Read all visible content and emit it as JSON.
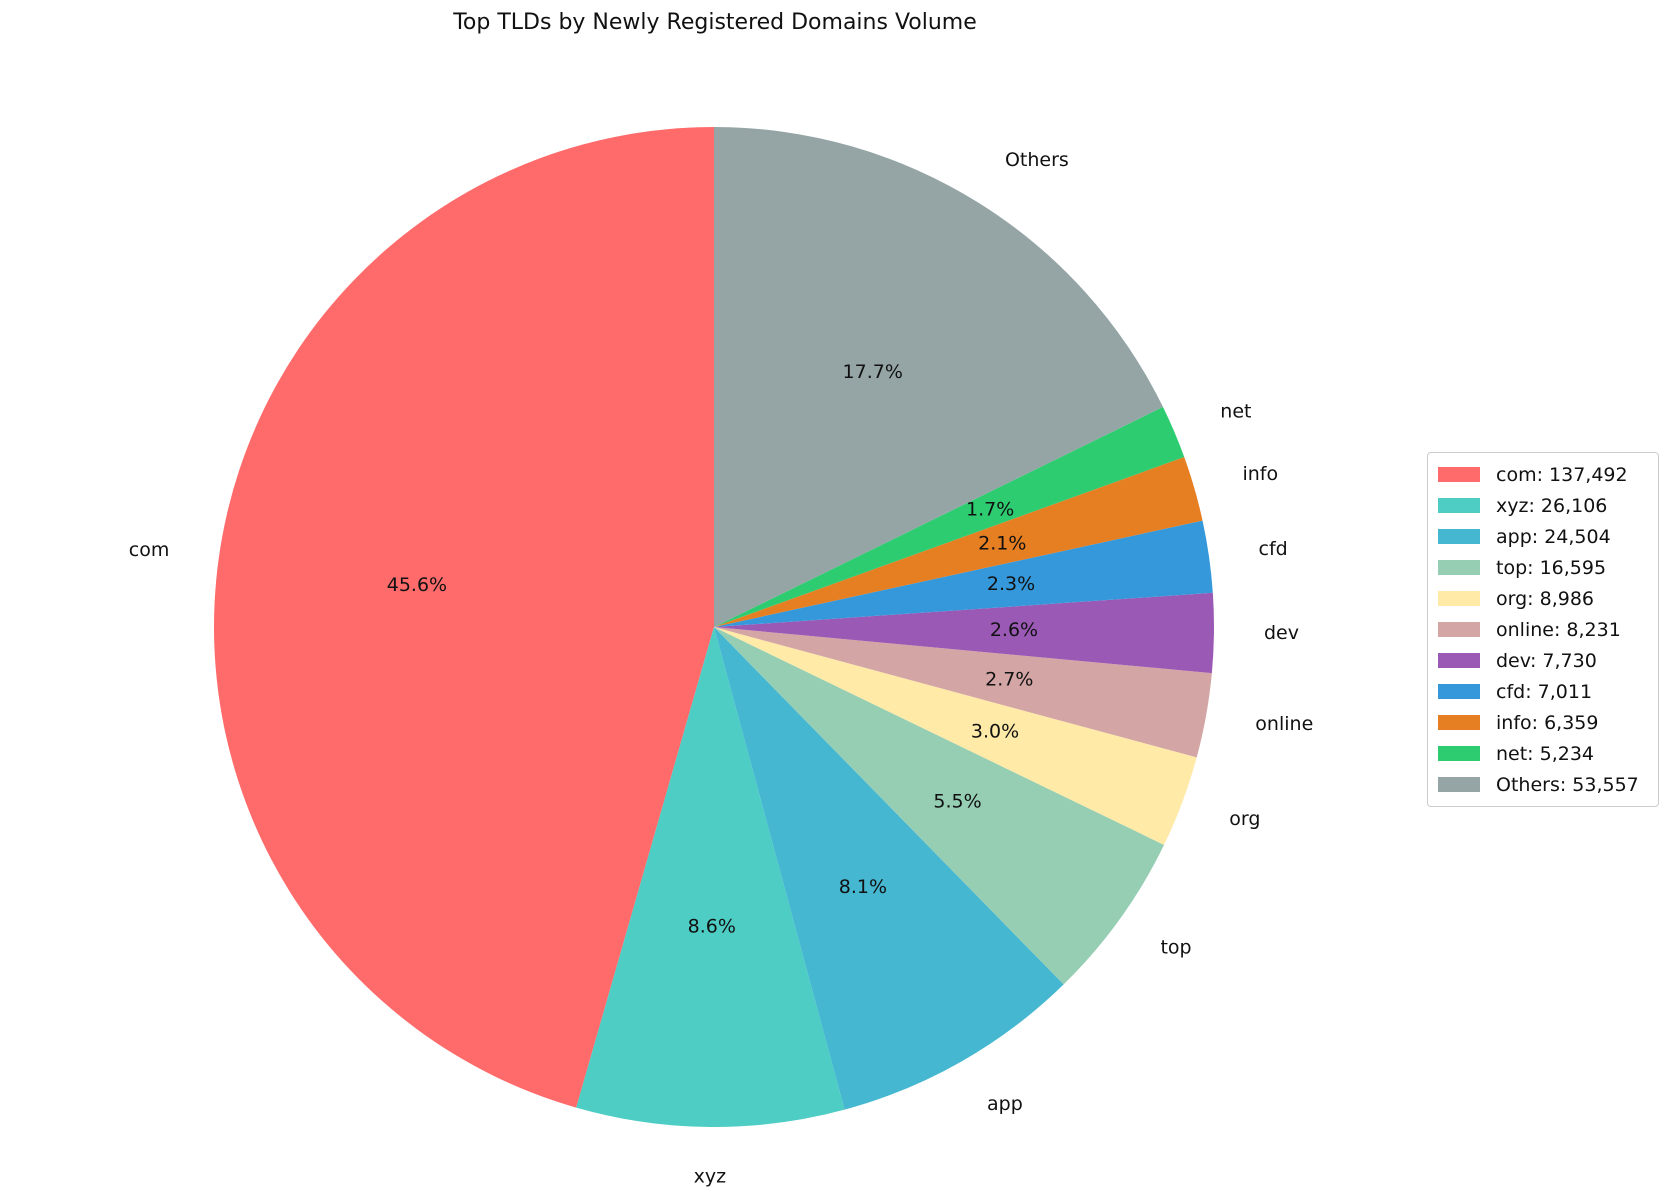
{
  "chart_data": {
    "type": "pie",
    "title": "Top TLDs by Newly Registered Domains Volume",
    "start_angle_deg": 90,
    "direction": "counterclockwise",
    "legend_position": "right",
    "slices": [
      {
        "label": "com",
        "value": 137492,
        "pct_label": "45.6%",
        "legend": "com: 137,492",
        "color": "#ff6b6b"
      },
      {
        "label": "xyz",
        "value": 26106,
        "pct_label": "8.6%",
        "legend": "xyz: 26,106",
        "color": "#4ecdc4"
      },
      {
        "label": "app",
        "value": 24504,
        "pct_label": "8.1%",
        "legend": "app: 24,504",
        "color": "#45b7d1"
      },
      {
        "label": "top",
        "value": 16595,
        "pct_label": "5.5%",
        "legend": "top: 16,595",
        "color": "#96ceb4"
      },
      {
        "label": "org",
        "value": 8986,
        "pct_label": "3.0%",
        "legend": "org: 8,986",
        "color": "#ffeaa7"
      },
      {
        "label": "online",
        "value": 8231,
        "pct_label": "2.7%",
        "legend": "online: 8,231",
        "color": "#d4a5a5"
      },
      {
        "label": "dev",
        "value": 7730,
        "pct_label": "2.6%",
        "legend": "dev: 7,730",
        "color": "#9b59b6"
      },
      {
        "label": "cfd",
        "value": 7011,
        "pct_label": "2.3%",
        "legend": "cfd: 7,011",
        "color": "#3498db"
      },
      {
        "label": "info",
        "value": 6359,
        "pct_label": "2.1%",
        "legend": "info: 6,359",
        "color": "#e67e22"
      },
      {
        "label": "net",
        "value": 5234,
        "pct_label": "1.7%",
        "legend": "net: 5,234",
        "color": "#2ecc71"
      },
      {
        "label": "Others",
        "value": 53557,
        "pct_label": "17.7%",
        "legend": "Others: 53,557",
        "color": "#95a5a6"
      }
    ]
  }
}
